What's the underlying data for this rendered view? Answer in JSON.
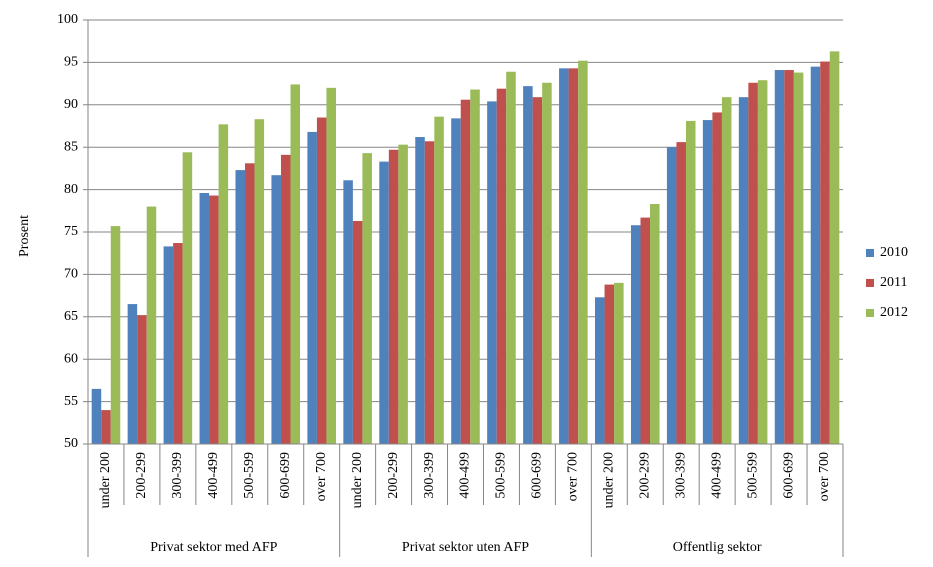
{
  "chart_data": {
    "type": "bar",
    "y_label": "Prosent",
    "groups": [
      "Privat sektor med AFP",
      "Privat sektor uten AFP",
      "Offentlig sektor"
    ],
    "categories": [
      "under 200",
      "200-299",
      "300-399",
      "400-499",
      "500-599",
      "600-699",
      "over 700",
      "under 200",
      "200-299",
      "300-399",
      "400-499",
      "500-599",
      "600-699",
      "over 700",
      "under 200",
      "200-299",
      "300-399",
      "400-499",
      "500-599",
      "600-699",
      "over 700"
    ],
    "series": [
      {
        "name": "2010",
        "color": "#4f81bd",
        "values": [
          56.5,
          66.5,
          73.3,
          79.6,
          82.3,
          81.7,
          86.8,
          81.1,
          83.3,
          86.2,
          88.4,
          90.4,
          92.2,
          94.3,
          67.3,
          75.8,
          85.0,
          88.2,
          90.9,
          94.1,
          94.5
        ]
      },
      {
        "name": "2011",
        "color": "#c0504d",
        "values": [
          54.0,
          65.2,
          73.7,
          79.3,
          83.1,
          84.1,
          88.5,
          76.3,
          84.7,
          85.7,
          90.6,
          91.9,
          90.9,
          94.3,
          68.8,
          76.7,
          85.6,
          89.1,
          92.6,
          94.1,
          95.1
        ]
      },
      {
        "name": "2012",
        "color": "#9bbb59",
        "values": [
          75.7,
          78.0,
          84.4,
          87.7,
          88.3,
          92.4,
          92.0,
          84.3,
          85.3,
          88.6,
          91.8,
          93.9,
          92.6,
          95.2,
          69.0,
          78.3,
          88.1,
          90.9,
          92.9,
          93.8,
          96.3
        ]
      }
    ],
    "ylim": [
      50,
      100
    ],
    "yticks": [
      50,
      55,
      60,
      65,
      70,
      75,
      80,
      85,
      90,
      95,
      100
    ],
    "grid": true,
    "legend": "right"
  }
}
